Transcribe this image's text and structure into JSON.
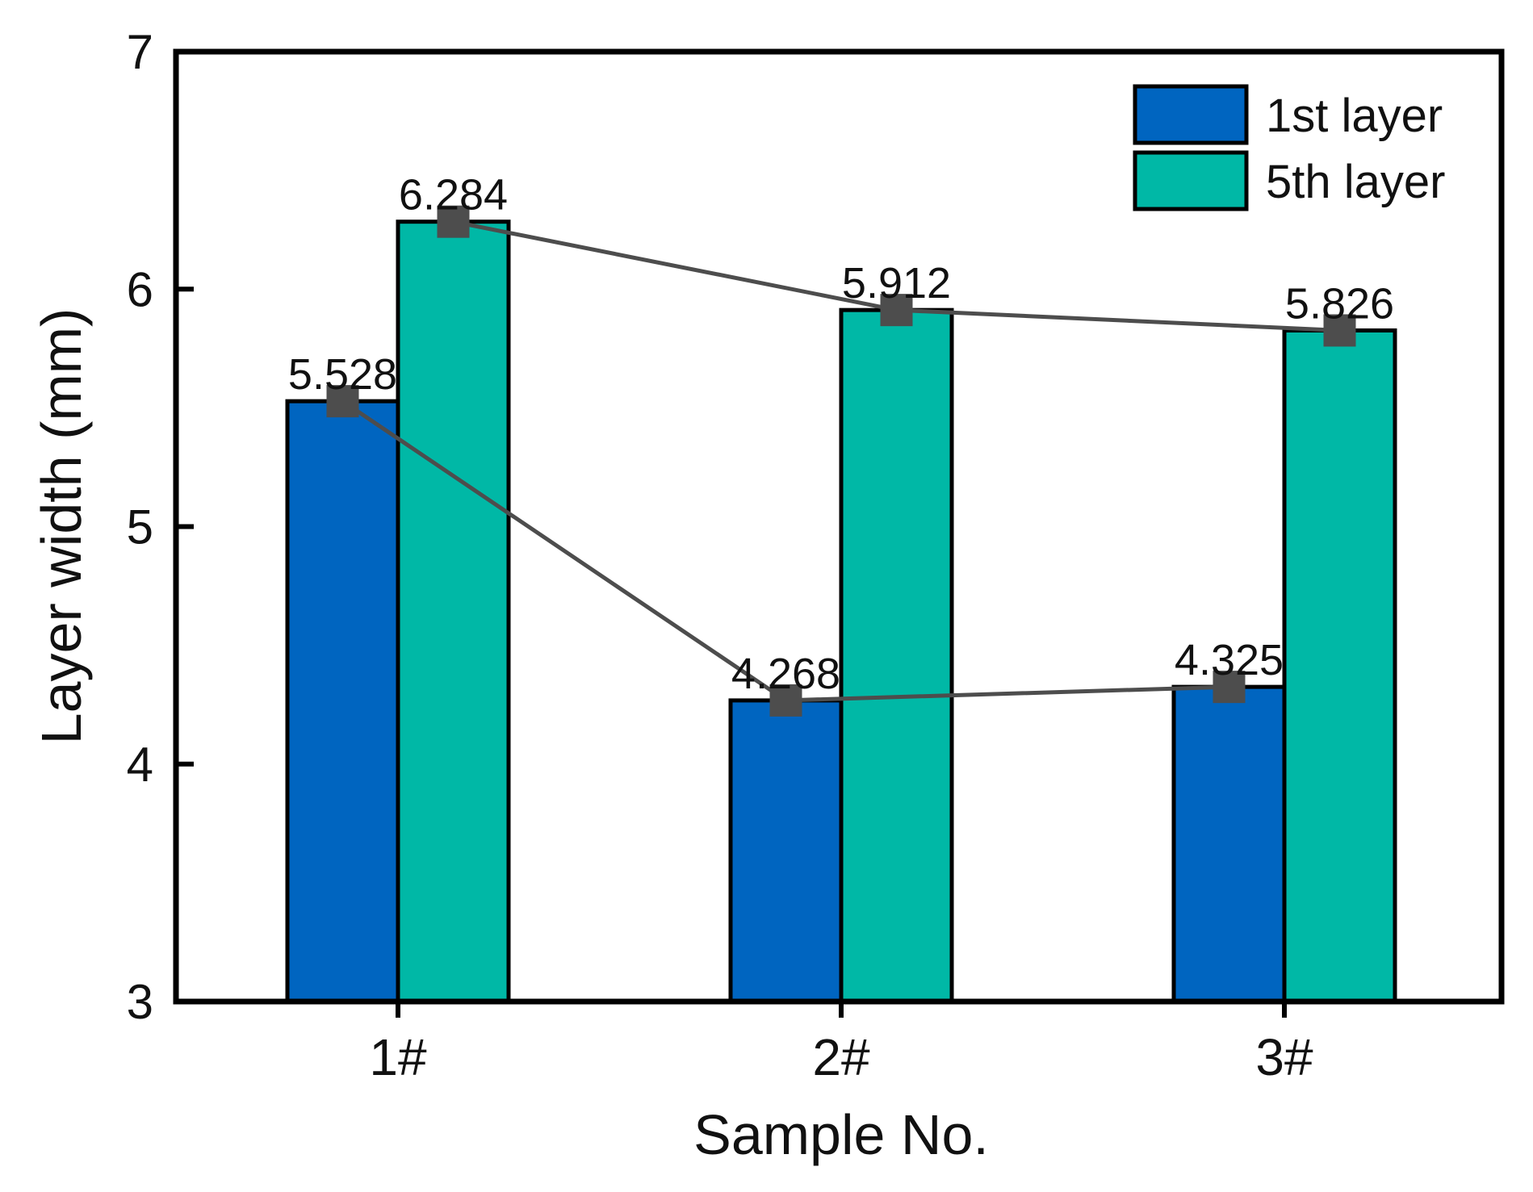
{
  "chart_data": {
    "type": "bar",
    "title": "",
    "xlabel": "Sample No.",
    "ylabel": "Layer width (mm)",
    "ylim": [
      3,
      7
    ],
    "yticks": [
      "3",
      "4",
      "5",
      "6",
      "7"
    ],
    "categories": [
      "1#",
      "2#",
      "3#"
    ],
    "series": [
      {
        "name": "1st layer",
        "values": [
          5.528,
          4.268,
          4.325
        ],
        "labels": [
          "5.528",
          "4.268",
          "4.325"
        ],
        "color": "#0065C0"
      },
      {
        "name": "5th layer",
        "values": [
          6.284,
          5.912,
          5.826
        ],
        "labels": [
          "6.284",
          "5.912",
          "5.826"
        ],
        "color": "#00B8A6"
      }
    ],
    "line_overlay": {
      "color": "#4D4D4D",
      "marker": "square"
    },
    "legend_position": "top-right",
    "grid": false
  }
}
